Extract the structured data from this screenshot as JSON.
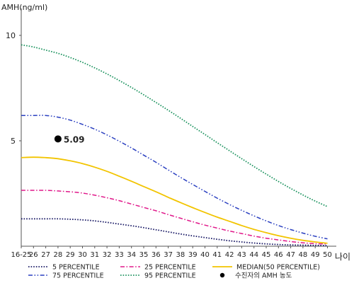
{
  "chart_data": {
    "type": "line",
    "ylabel": "AMH(ng/ml)",
    "xlabel": "나이",
    "ylim": [
      0,
      11
    ],
    "grid": false,
    "legend_position": "bottom",
    "x_categories": [
      "16-25",
      "26",
      "27",
      "28",
      "29",
      "30",
      "31",
      "32",
      "33",
      "34",
      "35",
      "36",
      "37",
      "38",
      "39",
      "40",
      "41",
      "42",
      "43",
      "44",
      "45",
      "46",
      "47",
      "48",
      "49",
      "50"
    ],
    "y_ticks": [
      5,
      10
    ],
    "series": [
      {
        "name": "5 PERCENTILE",
        "color": "#1a1a66",
        "style": "dotted",
        "values": [
          1.3,
          1.3,
          1.3,
          1.3,
          1.28,
          1.25,
          1.2,
          1.13,
          1.05,
          0.97,
          0.88,
          0.78,
          0.68,
          0.58,
          0.49,
          0.41,
          0.33,
          0.26,
          0.2,
          0.15,
          0.11,
          0.08,
          0.06,
          0.05,
          0.04,
          0.03
        ]
      },
      {
        "name": "25 PERCENTILE",
        "color": "#e0188a",
        "style": "dashdot",
        "values": [
          2.65,
          2.65,
          2.65,
          2.62,
          2.58,
          2.52,
          2.42,
          2.3,
          2.16,
          2.0,
          1.84,
          1.68,
          1.5,
          1.33,
          1.16,
          1.0,
          0.86,
          0.72,
          0.6,
          0.48,
          0.38,
          0.3,
          0.22,
          0.16,
          0.12,
          0.1
        ]
      },
      {
        "name": "MEDIAN(50 PERCENTILE)",
        "color": "#f2c400",
        "style": "solid",
        "values": [
          4.2,
          4.22,
          4.2,
          4.15,
          4.05,
          3.92,
          3.75,
          3.55,
          3.32,
          3.08,
          2.83,
          2.58,
          2.32,
          2.07,
          1.83,
          1.6,
          1.38,
          1.18,
          0.98,
          0.8,
          0.64,
          0.5,
          0.38,
          0.28,
          0.2,
          0.14
        ]
      },
      {
        "name": "75 PERCENTILE",
        "color": "#2a3fc0",
        "style": "dashdotdot",
        "values": [
          6.2,
          6.2,
          6.2,
          6.12,
          5.98,
          5.78,
          5.55,
          5.28,
          4.98,
          4.66,
          4.32,
          3.98,
          3.62,
          3.27,
          2.93,
          2.6,
          2.28,
          1.98,
          1.7,
          1.44,
          1.2,
          0.98,
          0.79,
          0.62,
          0.47,
          0.35
        ]
      },
      {
        "name": "95 PERCENTILE",
        "color": "#1e9460",
        "style": "dotted",
        "values": [
          9.55,
          9.45,
          9.3,
          9.15,
          8.95,
          8.72,
          8.46,
          8.17,
          7.86,
          7.53,
          7.18,
          6.82,
          6.45,
          6.07,
          5.68,
          5.3,
          4.91,
          4.53,
          4.15,
          3.78,
          3.42,
          3.07,
          2.74,
          2.43,
          2.14,
          1.88
        ]
      }
    ],
    "subject": {
      "label": "수진자의 AMH 농도",
      "x": "28",
      "y": 5.09,
      "value_label": "5.09"
    }
  }
}
